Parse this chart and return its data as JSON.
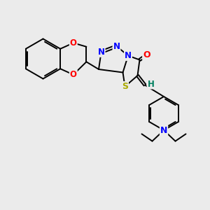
{
  "background_color": "#ebebeb",
  "atom_colors": {
    "N": "#0000ff",
    "O": "#ff0000",
    "S": "#aaaa00",
    "C": "#000000",
    "H": "#008060"
  },
  "bond_color": "#000000",
  "bond_width": 1.4,
  "figsize": [
    3.0,
    3.0
  ],
  "dpi": 100
}
